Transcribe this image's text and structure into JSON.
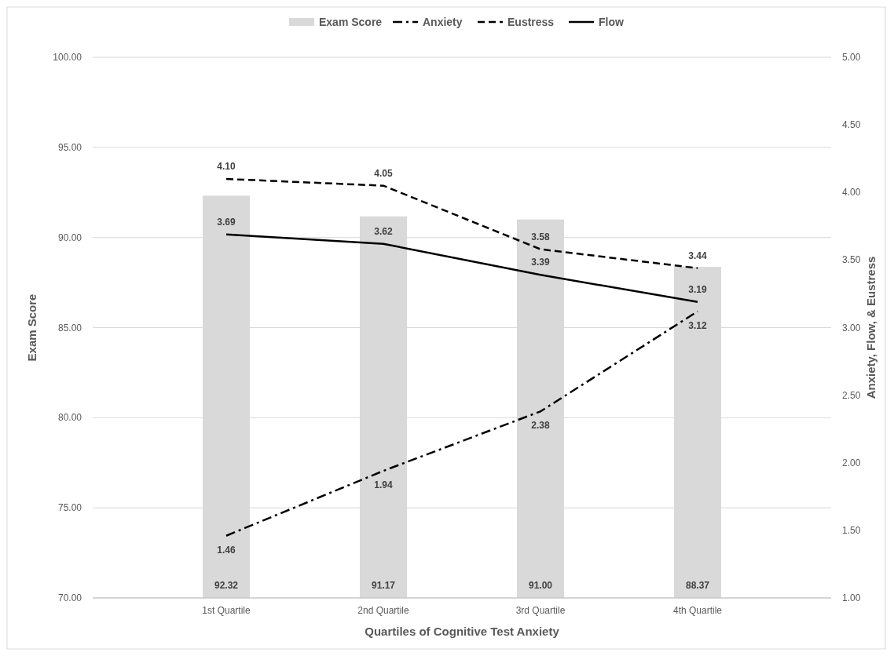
{
  "chart_data": {
    "type": "bar",
    "xlabel": "Quartiles of Cognitive Test Anxiety",
    "ylabel": "Exam Score",
    "y2label": "Anxiety, Flow, & Eustress",
    "categories": [
      "1st Quartile",
      "2nd Quartile",
      "3rd Quartile",
      "4th Quartile"
    ],
    "series": [
      {
        "name": "Exam Score",
        "color": "#d9d9d9",
        "values": [
          92.32,
          91.17,
          91.0,
          88.37
        ],
        "value_labels": [
          "92.32",
          "91.17",
          "91.00",
          "88.37"
        ]
      },
      {
        "name": "Anxiety",
        "type": "line",
        "axis": "y2",
        "line_style": "dashdot",
        "color": "#000000",
        "values": [
          1.46,
          1.94,
          2.38,
          3.12
        ],
        "value_labels": [
          "1.46",
          "1.94",
          "2.38",
          "3.12"
        ]
      },
      {
        "name": "Eustress",
        "type": "line",
        "axis": "y2",
        "line_style": "dashed",
        "color": "#000000",
        "values": [
          4.1,
          4.05,
          3.58,
          3.44
        ],
        "value_labels": [
          "4.10",
          "4.05",
          "3.58",
          "3.44"
        ]
      },
      {
        "name": "Flow",
        "type": "line",
        "axis": "y2",
        "line_style": "solid",
        "color": "#000000",
        "values": [
          3.69,
          3.62,
          3.39,
          3.19
        ],
        "value_labels": [
          "3.69",
          "3.62",
          "3.39",
          "3.19"
        ]
      }
    ],
    "ylim": [
      70,
      100
    ],
    "yticks": [
      {
        "value": 70,
        "label": "70.00"
      },
      {
        "value": 75,
        "label": "75.00"
      },
      {
        "value": 80,
        "label": "80.00"
      },
      {
        "value": 85,
        "label": "85.00"
      },
      {
        "value": 90,
        "label": "90.00"
      },
      {
        "value": 95,
        "label": "95.00"
      },
      {
        "value": 100,
        "label": "100.00"
      }
    ],
    "y2lim": [
      1,
      5
    ],
    "y2ticks": [
      {
        "value": 1,
        "label": "1.00"
      },
      {
        "value": 1.5,
        "label": "1.50"
      },
      {
        "value": 2,
        "label": "2.00"
      },
      {
        "value": 2.5,
        "label": "2.50"
      },
      {
        "value": 3,
        "label": "3.00"
      },
      {
        "value": 3.5,
        "label": "3.50"
      },
      {
        "value": 4,
        "label": "4.00"
      },
      {
        "value": 4.5,
        "label": "4.50"
      },
      {
        "value": 5,
        "label": "5.00"
      }
    ],
    "grid": "y",
    "legend": "top",
    "marker": "none"
  }
}
